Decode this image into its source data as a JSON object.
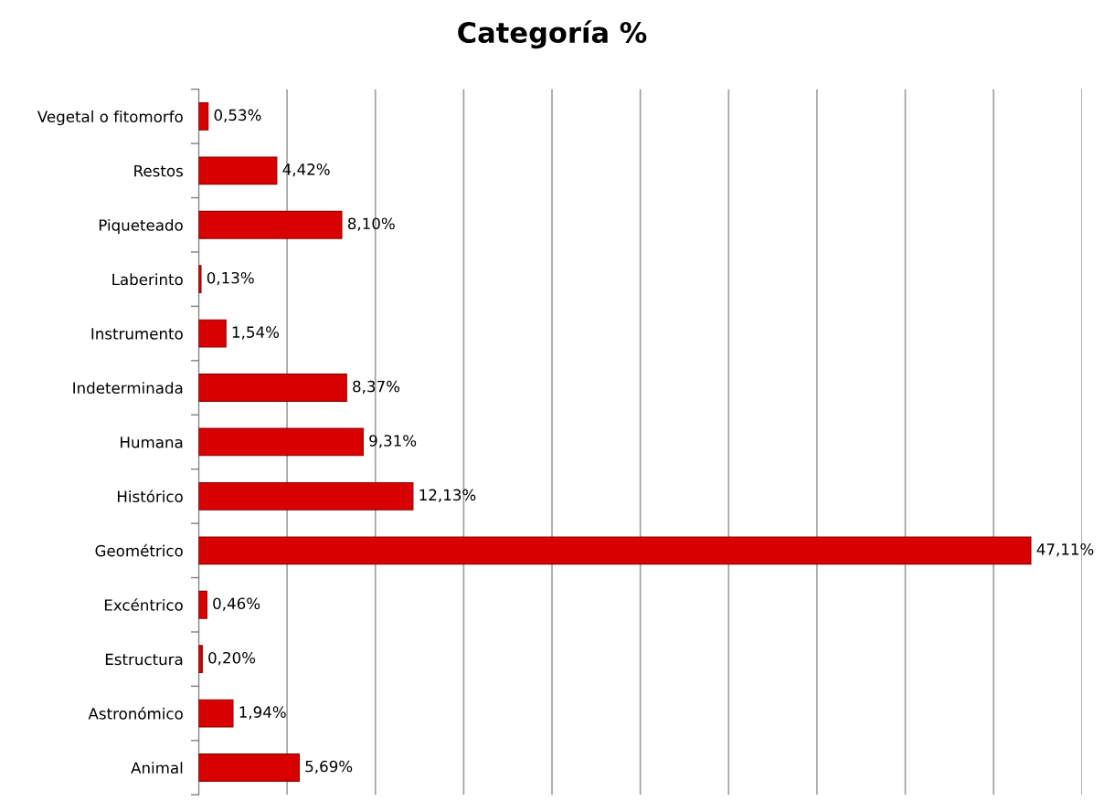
{
  "chart_data": {
    "type": "bar",
    "title": "Categoría %",
    "orientation": "horizontal",
    "categories": [
      "Vegetal o fitomorfo",
      "Restos",
      "Piqueteado",
      "Laberinto",
      "Instrumento",
      "Indeterminada",
      "Humana",
      "Histórico",
      "Geométrico",
      "Excéntrico",
      "Estructura",
      "Astronómico",
      "Animal"
    ],
    "values": [
      0.53,
      4.42,
      8.1,
      0.13,
      1.54,
      8.37,
      9.31,
      12.13,
      47.11,
      0.46,
      0.2,
      1.94,
      5.69
    ],
    "value_labels": [
      "0,53%",
      "4,42%",
      "8,10%",
      "0,13%",
      "1,54%",
      "8,37%",
      "9,31%",
      "12,13%",
      "47,11%",
      "0,46%",
      "0,20%",
      "1,94%",
      "5,69%"
    ],
    "color": "#d80000",
    "xlim": [
      0,
      50
    ],
    "xticks": [
      {
        "value": 0,
        "label": null
      },
      {
        "value": 5,
        "label": null
      },
      {
        "value": 10,
        "label": null
      },
      {
        "value": 15,
        "label": null
      },
      {
        "value": 20,
        "label": null
      },
      {
        "value": 25,
        "label": null
      },
      {
        "value": 30,
        "label": null
      },
      {
        "value": 35,
        "label": null
      },
      {
        "value": 40,
        "label": null
      },
      {
        "value": 45,
        "label": null
      },
      {
        "value": 50,
        "label": null
      }
    ],
    "grid": "x",
    "tick_labels": "y"
  }
}
